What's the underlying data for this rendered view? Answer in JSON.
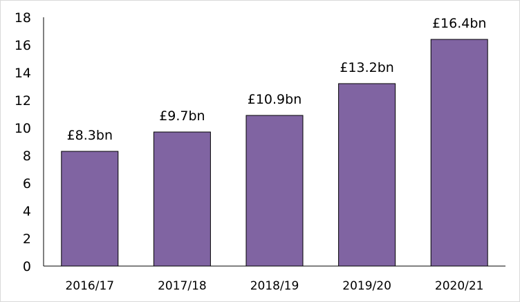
{
  "chart_data": {
    "type": "bar",
    "categories": [
      "2016/17",
      "2017/18",
      "2018/19",
      "2019/20",
      "2020/21"
    ],
    "values": [
      8.3,
      9.7,
      10.9,
      13.2,
      16.4
    ],
    "data_labels": [
      "£8.3bn",
      "£9.7bn",
      "£10.9bn",
      "£13.2bn",
      "£16.4bn"
    ],
    "title": "",
    "xlabel": "",
    "ylabel": "",
    "ylim": [
      0,
      18
    ],
    "yticks": [
      0,
      2,
      4,
      6,
      8,
      10,
      12,
      14,
      16,
      18
    ],
    "grid": false,
    "legend": "none",
    "bar_color": "#8064a2",
    "bar_edge_color": "#000000",
    "axis_color": "#000000",
    "frame_color": "#d9d9d9"
  }
}
